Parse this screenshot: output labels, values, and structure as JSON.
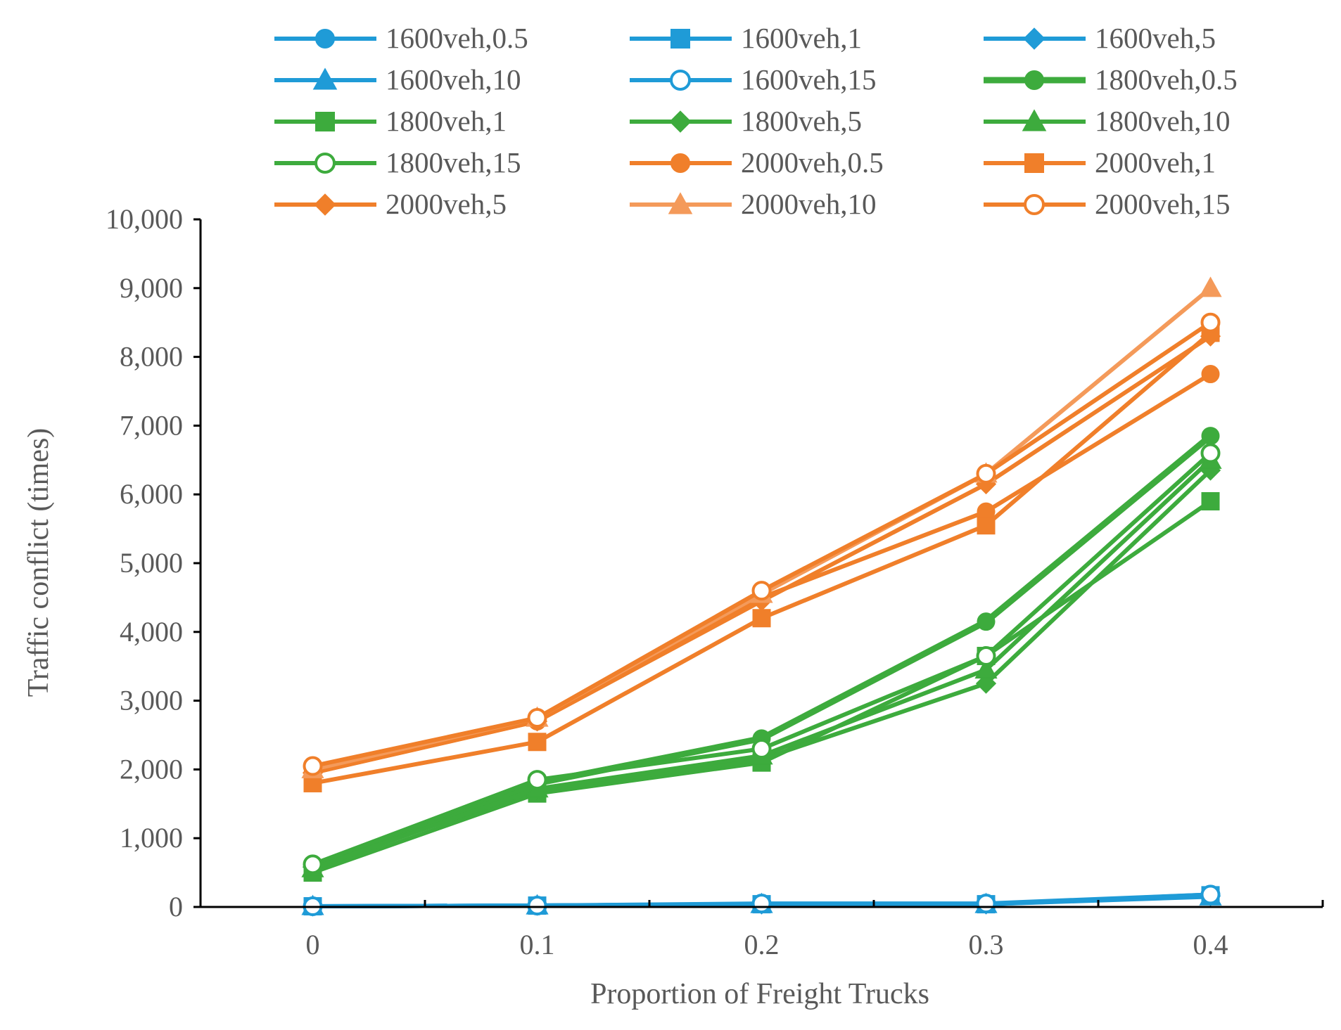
{
  "chart_data": {
    "type": "line",
    "title": "",
    "xlabel": "Proportion of Freight  Trucks",
    "ylabel": "Traffic conflict (times)",
    "x": [
      0,
      0.1,
      0.2,
      0.3,
      0.4
    ],
    "x_tick_labels": [
      "0",
      "0.1",
      "0.2",
      "0.3",
      "0.4"
    ],
    "xlim": [
      -0.05,
      0.45
    ],
    "ylim": [
      0,
      10000
    ],
    "y_ticks": [
      0,
      1000,
      2000,
      3000,
      4000,
      5000,
      6000,
      7000,
      8000,
      9000,
      10000
    ],
    "y_tick_labels": [
      "0",
      "1,000",
      "2,000",
      "3,000",
      "4,000",
      "5,000",
      "6,000",
      "7,000",
      "8,000",
      "9,000",
      "10,000"
    ],
    "grid": false,
    "legend_position": "top",
    "legend_columns": 3,
    "series": [
      {
        "name": "1600veh,0.5",
        "color": "#1f9bd7",
        "marker": "circle",
        "filled": true,
        "values": [
          10,
          20,
          40,
          40,
          180
        ]
      },
      {
        "name": "1600veh,1",
        "color": "#1f9bd7",
        "marker": "square",
        "filled": true,
        "values": [
          10,
          20,
          40,
          40,
          170
        ]
      },
      {
        "name": "1600veh,5",
        "color": "#1f9bd7",
        "marker": "diamond",
        "filled": true,
        "values": [
          10,
          20,
          40,
          40,
          160
        ]
      },
      {
        "name": "1600veh,10",
        "color": "#1f9bd7",
        "marker": "triangle",
        "filled": true,
        "values": [
          10,
          20,
          40,
          40,
          150
        ]
      },
      {
        "name": "1600veh,15",
        "color": "#1f9bd7",
        "marker": "circle",
        "filled": false,
        "values": [
          10,
          20,
          50,
          50,
          180
        ]
      },
      {
        "name": "1800veh,0.5",
        "color": "#3dab3d",
        "marker": "circle",
        "filled": true,
        "values": [
          550,
          1800,
          2450,
          4150,
          6850
        ]
      },
      {
        "name": "1800veh,1",
        "color": "#3dab3d",
        "marker": "square",
        "filled": true,
        "values": [
          500,
          1650,
          2100,
          3650,
          5900
        ]
      },
      {
        "name": "1800veh,5",
        "color": "#3dab3d",
        "marker": "diamond",
        "filled": true,
        "values": [
          580,
          1700,
          2150,
          3250,
          6350
        ]
      },
      {
        "name": "1800veh,10",
        "color": "#3dab3d",
        "marker": "triangle",
        "filled": true,
        "values": [
          560,
          1720,
          2200,
          3450,
          6500
        ]
      },
      {
        "name": "1800veh,15",
        "color": "#3dab3d",
        "marker": "circle",
        "filled": false,
        "values": [
          620,
          1850,
          2300,
          3650,
          6600
        ]
      },
      {
        "name": "2000veh,0.5",
        "color": "#f07f2a",
        "marker": "circle",
        "filled": true,
        "values": [
          1950,
          2700,
          4500,
          5750,
          7750
        ]
      },
      {
        "name": "2000veh,1",
        "color": "#f07f2a",
        "marker": "square",
        "filled": true,
        "values": [
          1800,
          2400,
          4200,
          5550,
          8350
        ]
      },
      {
        "name": "2000veh,5",
        "color": "#f07f2a",
        "marker": "diamond",
        "filled": true,
        "values": [
          1950,
          2700,
          4450,
          6150,
          8300
        ]
      },
      {
        "name": "2000veh,10",
        "color": "#f49a5a",
        "marker": "triangle",
        "filled": true,
        "values": [
          2000,
          2750,
          4550,
          6300,
          9000
        ]
      },
      {
        "name": "2000veh,15",
        "color": "#f07f2a",
        "marker": "circle",
        "filled": false,
        "values": [
          2050,
          2750,
          4600,
          6300,
          8500
        ]
      }
    ]
  }
}
